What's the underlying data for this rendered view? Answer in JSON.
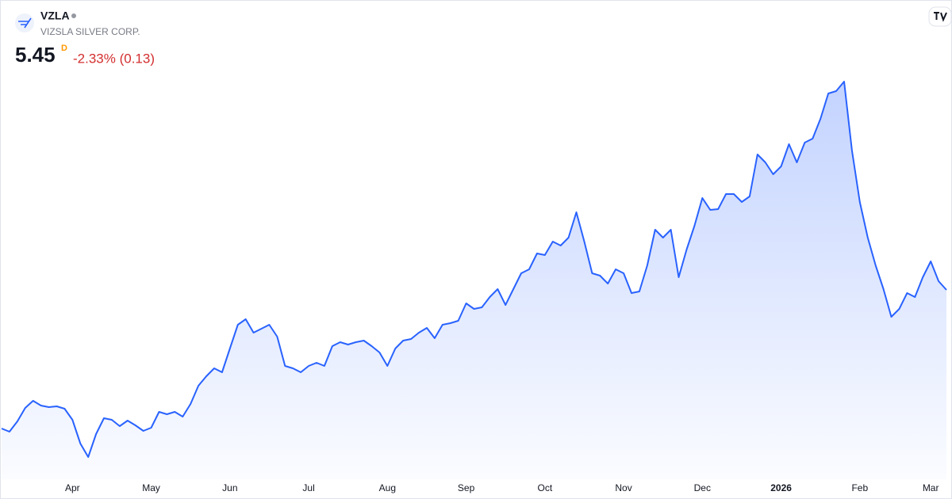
{
  "header": {
    "symbol": "VZLA",
    "name": "VIZSLA SILVER CORP.",
    "price": "5.45",
    "interval": "D",
    "change": "-2.33% (0.13)"
  },
  "chart_data": {
    "type": "area",
    "color": "#2962ff",
    "categories": [
      null,
      null,
      null,
      null,
      null,
      null,
      null,
      null,
      null,
      "Apr",
      null,
      null,
      null,
      null,
      null,
      null,
      null,
      null,
      null,
      "May",
      null,
      null,
      null,
      null,
      null,
      null,
      null,
      null,
      null,
      "Jun",
      null,
      null,
      null,
      null,
      null,
      null,
      null,
      null,
      null,
      "Jul",
      null,
      null,
      null,
      null,
      null,
      null,
      null,
      null,
      null,
      "Aug",
      null,
      null,
      null,
      null,
      null,
      null,
      null,
      null,
      null,
      "Sep",
      null,
      null,
      null,
      null,
      null,
      null,
      null,
      null,
      null,
      "Oct",
      null,
      null,
      null,
      null,
      null,
      null,
      null,
      null,
      null,
      "Nov",
      null,
      null,
      null,
      null,
      null,
      null,
      null,
      null,
      null,
      "Dec",
      null,
      null,
      null,
      null,
      null,
      null,
      null,
      null,
      null,
      "2026",
      null,
      null,
      null,
      null,
      null,
      null,
      null,
      null,
      null,
      "Feb",
      null,
      null,
      null,
      null,
      null,
      null,
      null,
      null,
      "Mar",
      null,
      null
    ],
    "values": [
      1.95,
      1.87,
      2.13,
      2.47,
      2.65,
      2.53,
      2.49,
      2.51,
      2.45,
      2.17,
      1.57,
      1.23,
      1.81,
      2.21,
      2.17,
      2.01,
      2.15,
      2.03,
      1.89,
      1.97,
      2.37,
      2.31,
      2.37,
      2.25,
      2.57,
      3.03,
      3.27,
      3.47,
      3.37,
      3.97,
      4.57,
      4.71,
      4.37,
      4.47,
      4.57,
      4.27,
      3.53,
      3.47,
      3.37,
      3.53,
      3.61,
      3.53,
      4.03,
      4.13,
      4.07,
      4.13,
      4.17,
      4.03,
      3.87,
      3.53,
      3.97,
      4.17,
      4.21,
      4.37,
      4.49,
      4.23,
      4.57,
      4.61,
      4.67,
      5.11,
      4.97,
      5.01,
      5.27,
      5.47,
      5.07,
      5.47,
      5.87,
      5.97,
      6.37,
      6.33,
      6.67,
      6.57,
      6.77,
      7.41,
      6.67,
      5.87,
      5.81,
      5.61,
      5.97,
      5.87,
      5.37,
      5.41,
      6.07,
      6.97,
      6.77,
      6.97,
      5.77,
      6.47,
      7.07,
      7.77,
      7.47,
      7.49,
      7.87,
      7.87,
      7.67,
      7.81,
      8.87,
      8.67,
      8.37,
      8.57,
      9.13,
      8.67,
      9.17,
      9.27,
      9.77,
      10.41,
      10.47,
      10.71,
      8.97,
      7.67,
      6.77,
      6.07,
      5.47,
      4.77,
      4.97,
      5.37,
      5.27,
      5.77,
      6.17,
      5.67,
      5.45
    ]
  }
}
